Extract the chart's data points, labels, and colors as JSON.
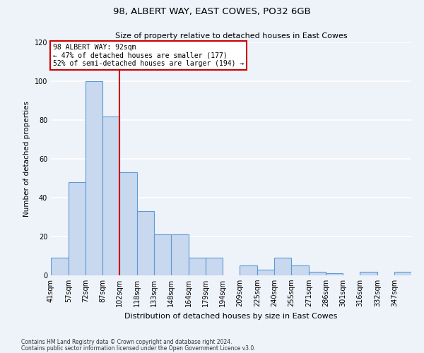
{
  "title": "98, ALBERT WAY, EAST COWES, PO32 6GB",
  "subtitle": "Size of property relative to detached houses in East Cowes",
  "xlabel": "Distribution of detached houses by size in East Cowes",
  "ylabel": "Number of detached properties",
  "bar_labels": [
    "41sqm",
    "57sqm",
    "72sqm",
    "87sqm",
    "102sqm",
    "118sqm",
    "133sqm",
    "148sqm",
    "164sqm",
    "179sqm",
    "194sqm",
    "209sqm",
    "225sqm",
    "240sqm",
    "255sqm",
    "271sqm",
    "286sqm",
    "301sqm",
    "316sqm",
    "332sqm",
    "347sqm"
  ],
  "bar_heights": [
    9,
    48,
    100,
    82,
    53,
    33,
    21,
    21,
    9,
    9,
    0,
    5,
    3,
    9,
    5,
    2,
    1,
    0,
    2,
    0,
    2
  ],
  "bar_color": "#c8d8ef",
  "bar_edge_color": "#5b9bd5",
  "bin_edges": [
    33.5,
    49.5,
    64.5,
    79.5,
    94.5,
    110.5,
    125.5,
    140.5,
    156.5,
    171.5,
    186.5,
    201.5,
    217.5,
    232.5,
    247.5,
    263.5,
    278.5,
    293.5,
    308.5,
    324.5,
    339.5,
    354.5
  ],
  "red_line_x": 94.5,
  "annotation_title": "98 ALBERT WAY: 92sqm",
  "annotation_line1": "← 47% of detached houses are smaller (177)",
  "annotation_line2": "52% of semi-detached houses are larger (194) →",
  "annotation_box_color": "#ffffff",
  "annotation_box_edge": "#cc0000",
  "red_line_color": "#cc0000",
  "ylim": [
    0,
    120
  ],
  "yticks": [
    0,
    20,
    40,
    60,
    80,
    100,
    120
  ],
  "background_color": "#eef2f9",
  "grid_color": "#ffffff",
  "footnote1": "Contains HM Land Registry data © Crown copyright and database right 2024.",
  "footnote2": "Contains public sector information licensed under the Open Government Licence v3.0."
}
